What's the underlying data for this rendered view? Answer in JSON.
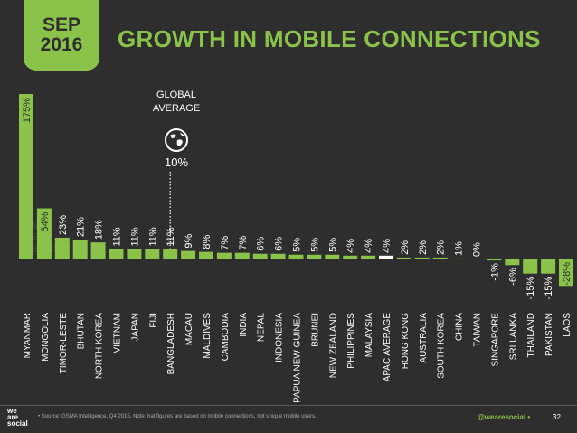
{
  "badge": {
    "month": "SEP",
    "year": "2016"
  },
  "title": "GROWTH IN MOBILE CONNECTIONS",
  "global": {
    "label_line1": "GLOBAL",
    "label_line2": "AVERAGE",
    "value": "10%"
  },
  "watermark": [
    "we",
    "are",
    "social"
  ],
  "footer": {
    "source": "• Source: GSMA Intelligence, Q4 2015. Note that figures are based on mobile connections, not unique mobile users.",
    "handle": "@wearesocial •",
    "page": "32",
    "logo": [
      "we",
      "are",
      "social"
    ]
  },
  "colors": {
    "accent": "#8bc34a",
    "highlight": "#ffffff",
    "background": "#2e2e2e"
  },
  "chart_data": {
    "type": "bar",
    "orientation": "vertical",
    "categories": [
      "MYANMAR",
      "MONGOLIA",
      "TIMOR-LESTE",
      "BHUTAN",
      "NORTH KOREA",
      "VIETNAM",
      "JAPAN",
      "FIJI",
      "BANGLADESH",
      "MACAU",
      "MALDIVES",
      "CAMBODIA",
      "INDIA",
      "NEPAL",
      "INDONESIA",
      "PAPUA NEW GUINEA",
      "BRUNEI",
      "NEW ZEALAND",
      "PHILIPPINES",
      "MALAYSIA",
      "APAC AVERAGE",
      "HONG KONG",
      "AUSTRALIA",
      "SOUTH KOREA",
      "CHINA",
      "TAIWAN",
      "SINGAPORE",
      "SRI LANKA",
      "THAILAND",
      "PAKISTAN",
      "LAOS"
    ],
    "values": [
      175,
      54,
      23,
      21,
      18,
      11,
      11,
      11,
      11,
      9,
      8,
      7,
      7,
      6,
      6,
      5,
      5,
      5,
      4,
      4,
      4,
      2,
      2,
      2,
      1,
      0,
      -1,
      -6,
      -15,
      -15,
      -28
    ],
    "value_labels": [
      "175%",
      "54%",
      "23%",
      "21%",
      "18%",
      "11%",
      "11%",
      "11%",
      "11%",
      "9%",
      "8%",
      "7%",
      "7%",
      "6%",
      "6%",
      "5%",
      "5%",
      "5%",
      "4%",
      "4%",
      "4%",
      "2%",
      "2%",
      "2%",
      "1%",
      "0%",
      "-1%",
      "-6%",
      "-15%",
      "-15%",
      "-28%"
    ],
    "highlight_category": "APAC AVERAGE",
    "reference_line": {
      "label": "GLOBAL AVERAGE",
      "value": 10
    },
    "title": "GROWTH IN MOBILE CONNECTIONS",
    "xlabel": "",
    "ylabel": "",
    "grid": false,
    "legend": "none"
  }
}
